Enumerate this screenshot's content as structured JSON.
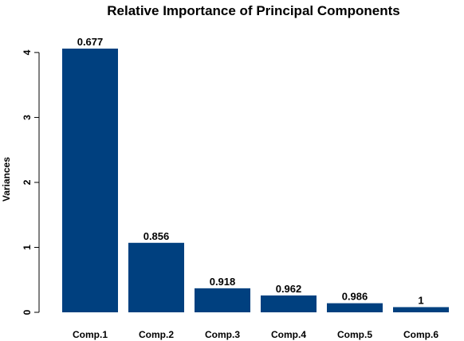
{
  "chart_data": {
    "type": "bar",
    "title": "Relative Importance of Principal Components",
    "ylabel": "Variances",
    "xlabel": "",
    "categories": [
      "Comp.1",
      "Comp.2",
      "Comp.3",
      "Comp.4",
      "Comp.5",
      "Comp.6"
    ],
    "values": [
      4.06,
      1.07,
      0.37,
      0.26,
      0.14,
      0.08
    ],
    "data_labels": [
      "0.677",
      "0.856",
      "0.918",
      "0.962",
      "0.986",
      "1"
    ],
    "yticks": [
      0,
      1,
      2,
      3,
      4
    ],
    "ylim": [
      0,
      4.06
    ],
    "bar_color": "#00407f",
    "grid": false,
    "legend": "none"
  }
}
